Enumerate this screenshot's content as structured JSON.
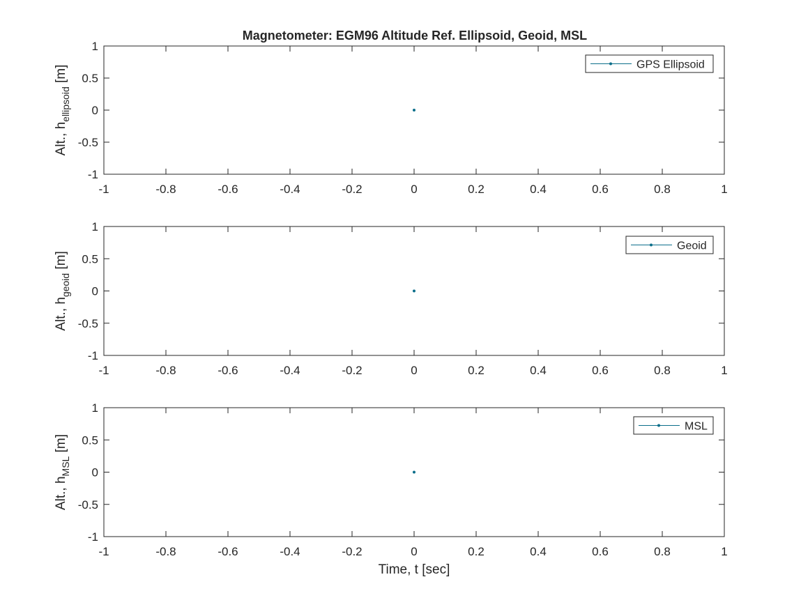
{
  "figure": {
    "title": "Magnetometer: EGM96 Altitude Ref. Ellipsoid, Geoid, MSL"
  },
  "colors": {
    "series": "#0b6e8a",
    "axis": "#262626",
    "background": "#ffffff"
  },
  "chart_data": [
    {
      "type": "line",
      "ylabel": {
        "prefix": "Alt., h",
        "subscript": "ellipsoid",
        "suffix": " [m]"
      },
      "xlabel": "",
      "xlim": [
        -1,
        1
      ],
      "ylim": [
        -1,
        1
      ],
      "xticks": [
        -1,
        -0.8,
        -0.6,
        -0.4,
        -0.2,
        0,
        0.2,
        0.4,
        0.6,
        0.8,
        1
      ],
      "xtick_labels": [
        "-1",
        "-0.8",
        "-0.6",
        "-0.4",
        "-0.2",
        "0",
        "0.2",
        "0.4",
        "0.6",
        "0.8",
        "1"
      ],
      "yticks": [
        -1,
        -0.5,
        0,
        0.5,
        1
      ],
      "ytick_labels": [
        "-1",
        "-0.5",
        "0",
        "0.5",
        "1"
      ],
      "legend_position": "top-right",
      "grid": false,
      "series": [
        {
          "name": "GPS Ellipsoid",
          "x": [
            0
          ],
          "y": [
            0
          ],
          "marker": "dot"
        }
      ]
    },
    {
      "type": "line",
      "ylabel": {
        "prefix": "Alt., h",
        "subscript": "geoid",
        "suffix": " [m]"
      },
      "xlabel": "",
      "xlim": [
        -1,
        1
      ],
      "ylim": [
        -1,
        1
      ],
      "xticks": [
        -1,
        -0.8,
        -0.6,
        -0.4,
        -0.2,
        0,
        0.2,
        0.4,
        0.6,
        0.8,
        1
      ],
      "xtick_labels": [
        "-1",
        "-0.8",
        "-0.6",
        "-0.4",
        "-0.2",
        "0",
        "0.2",
        "0.4",
        "0.6",
        "0.8",
        "1"
      ],
      "yticks": [
        -1,
        -0.5,
        0,
        0.5,
        1
      ],
      "ytick_labels": [
        "-1",
        "-0.5",
        "0",
        "0.5",
        "1"
      ],
      "legend_position": "top-right",
      "grid": false,
      "series": [
        {
          "name": "Geoid",
          "x": [
            0
          ],
          "y": [
            0
          ],
          "marker": "dot"
        }
      ]
    },
    {
      "type": "line",
      "ylabel": {
        "prefix": "Alt., h",
        "subscript": "MSL",
        "suffix": " [m]"
      },
      "xlabel": "Time, t [sec]",
      "xlim": [
        -1,
        1
      ],
      "ylim": [
        -1,
        1
      ],
      "xticks": [
        -1,
        -0.8,
        -0.6,
        -0.4,
        -0.2,
        0,
        0.2,
        0.4,
        0.6,
        0.8,
        1
      ],
      "xtick_labels": [
        "-1",
        "-0.8",
        "-0.6",
        "-0.4",
        "-0.2",
        "0",
        "0.2",
        "0.4",
        "0.6",
        "0.8",
        "1"
      ],
      "yticks": [
        -1,
        -0.5,
        0,
        0.5,
        1
      ],
      "ytick_labels": [
        "-1",
        "-0.5",
        "0",
        "0.5",
        "1"
      ],
      "legend_position": "top-right",
      "grid": false,
      "series": [
        {
          "name": "MSL",
          "x": [
            0
          ],
          "y": [
            0
          ],
          "marker": "dot"
        }
      ]
    }
  ]
}
